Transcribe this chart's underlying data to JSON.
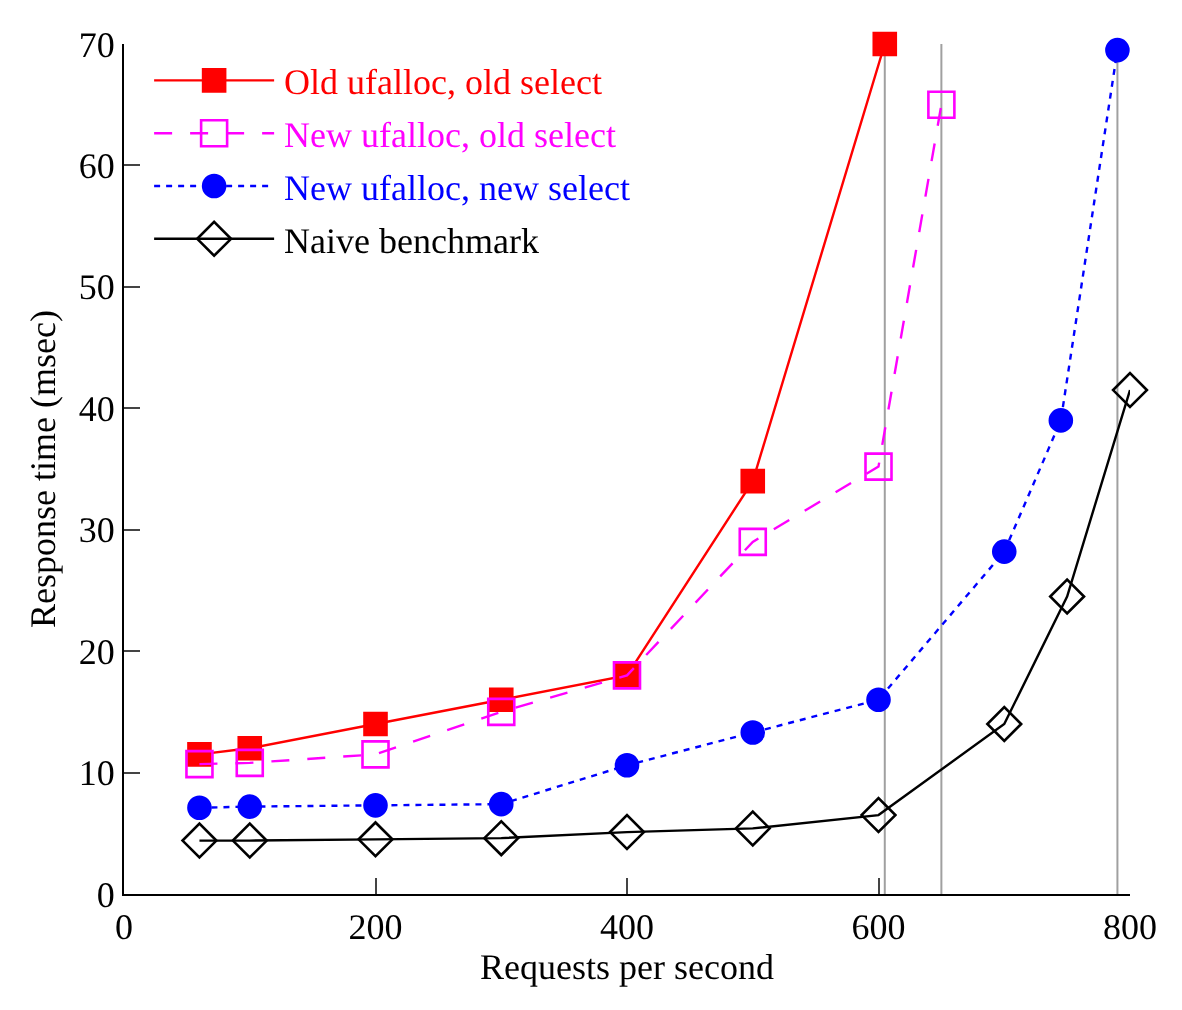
{
  "chart_data": {
    "type": "line",
    "xlabel": "Requests per second",
    "ylabel": "Response time (msec)",
    "xlim": [
      0,
      800
    ],
    "xticks": [
      0,
      200,
      400,
      600,
      800
    ],
    "ylim": [
      0,
      70
    ],
    "yticks": [
      0,
      10,
      20,
      30,
      40,
      50,
      60,
      70
    ],
    "grid": false,
    "legend": "top left",
    "series": [
      {
        "name": "Old ufalloc, old select",
        "color": "#ff0000",
        "marker": "square",
        "line_style": "solid",
        "x": [
          60,
          100,
          200,
          300,
          400,
          500,
          605
        ],
        "values": [
          11.5,
          12,
          14,
          16,
          18,
          34,
          70
        ]
      },
      {
        "name": "New ufalloc, old select",
        "color": "#ff00ff",
        "marker": "square-open",
        "line_style": "dashed",
        "x": [
          60,
          100,
          200,
          300,
          400,
          500,
          600,
          650
        ],
        "values": [
          10.7,
          10.8,
          11.5,
          15,
          18,
          29,
          35.2,
          65
        ]
      },
      {
        "name": "New ufalloc, new select",
        "color": "#0000ff",
        "marker": "circle",
        "line_style": "dotted",
        "x": [
          60,
          100,
          200,
          300,
          400,
          500,
          600,
          700,
          745,
          790
        ],
        "values": [
          7.1,
          7.2,
          7.3,
          7.4,
          10.6,
          13.3,
          16,
          28.2,
          39,
          69.5
        ]
      },
      {
        "name": "Naive benchmark",
        "color": "#000000",
        "marker": "diamond-open",
        "line_style": "solid",
        "x": [
          60,
          100,
          200,
          300,
          400,
          500,
          600,
          700,
          750,
          800
        ],
        "values": [
          4.4,
          4.4,
          4.5,
          4.6,
          5.1,
          5.4,
          6.5,
          14,
          24.5,
          41.5
        ]
      }
    ],
    "ref_lines": [
      {
        "axis": "x",
        "value": 605,
        "color": "#a0a0a0"
      },
      {
        "axis": "x",
        "value": 650,
        "color": "#a0a0a0"
      },
      {
        "axis": "x",
        "value": 790,
        "color": "#a0a0a0"
      }
    ]
  }
}
